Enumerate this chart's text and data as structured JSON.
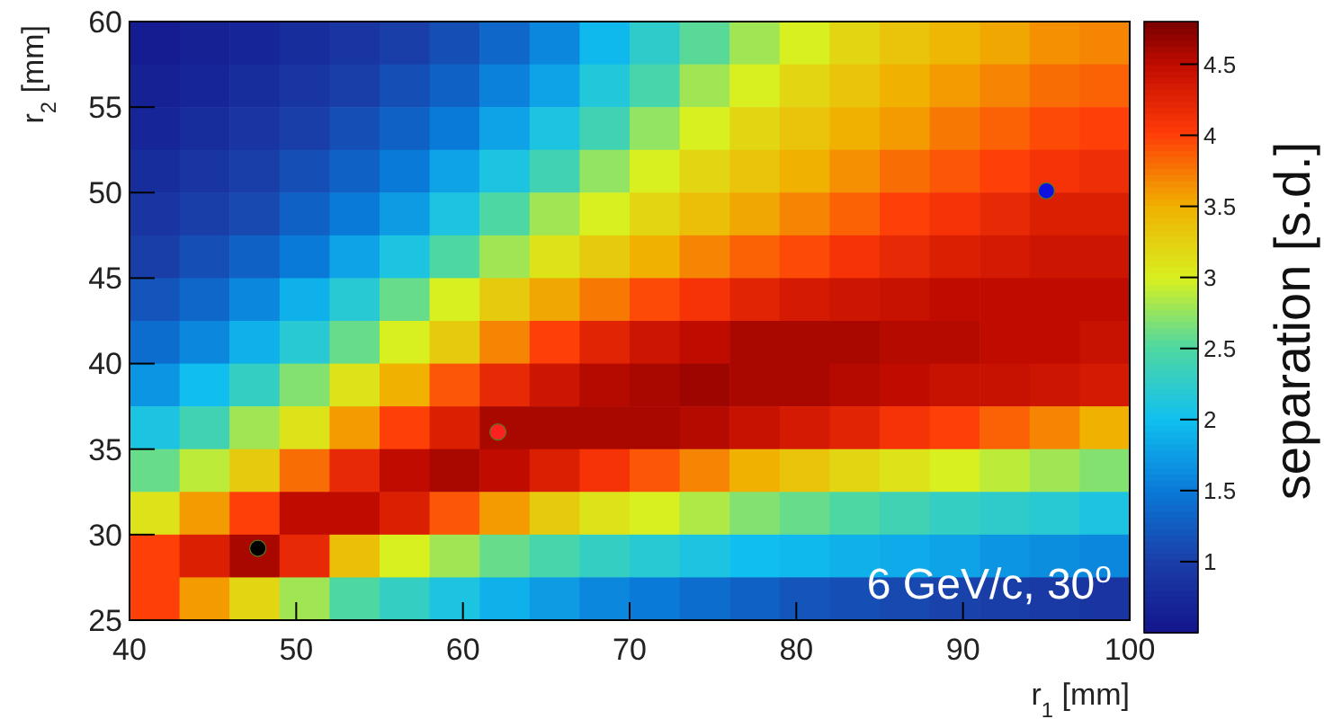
{
  "chart_data": {
    "type": "heatmap",
    "xlabel": "r$_{1}$ [mm]",
    "ylabel": "r$_{2}$ [mm]",
    "clabel": "separation [s.d.]",
    "annotations": [
      "6 GeV/c, 30$^{o}$"
    ],
    "x": [
      41.5,
      44.5,
      47.5,
      50.5,
      53.5,
      56.5,
      59.5,
      62.5,
      65.5,
      68.5,
      71.5,
      74.5,
      77.5,
      80.5,
      83.5,
      86.5,
      89.5,
      92.5,
      95.5,
      98.5
    ],
    "y": [
      58.75,
      56.25,
      53.75,
      51.25,
      48.75,
      46.25,
      43.75,
      41.25,
      38.75,
      36.25,
      33.75,
      31.25,
      28.75,
      26.25
    ],
    "cells": [
      [
        0.6,
        0.65,
        0.7,
        0.8,
        0.9,
        1.0,
        1.15,
        1.35,
        1.6,
        1.95,
        2.25,
        2.55,
        2.8,
        3.0,
        3.2,
        3.35,
        3.45,
        3.55,
        3.65,
        3.7
      ],
      [
        0.65,
        0.7,
        0.8,
        0.9,
        1.0,
        1.15,
        1.3,
        1.55,
        1.8,
        2.15,
        2.45,
        2.8,
        3.0,
        3.2,
        3.35,
        3.5,
        3.6,
        3.7,
        3.8,
        3.85
      ],
      [
        0.7,
        0.8,
        0.9,
        1.0,
        1.15,
        1.3,
        1.5,
        1.8,
        2.1,
        2.4,
        2.75,
        3.0,
        3.2,
        3.35,
        3.5,
        3.6,
        3.75,
        3.85,
        3.95,
        4.0
      ],
      [
        0.8,
        0.9,
        1.0,
        1.15,
        1.3,
        1.5,
        1.8,
        2.1,
        2.4,
        2.75,
        3.0,
        3.2,
        3.35,
        3.5,
        3.65,
        3.8,
        3.9,
        4.0,
        4.1,
        4.15
      ],
      [
        0.9,
        1.0,
        1.1,
        1.3,
        1.5,
        1.75,
        2.1,
        2.5,
        2.8,
        3.0,
        3.2,
        3.4,
        3.55,
        3.7,
        3.85,
        4.0,
        4.1,
        4.2,
        4.3,
        4.3
      ],
      [
        1.0,
        1.15,
        1.3,
        1.5,
        1.8,
        2.1,
        2.5,
        2.8,
        3.1,
        3.3,
        3.5,
        3.7,
        3.85,
        3.95,
        4.1,
        4.2,
        4.3,
        4.35,
        4.4,
        4.4
      ],
      [
        1.2,
        1.35,
        1.6,
        1.9,
        2.2,
        2.6,
        3.0,
        3.3,
        3.55,
        3.75,
        3.95,
        4.1,
        4.25,
        4.35,
        4.4,
        4.45,
        4.5,
        4.5,
        4.5,
        4.5
      ],
      [
        1.4,
        1.6,
        1.9,
        2.2,
        2.6,
        3.0,
        3.3,
        3.7,
        4.0,
        4.25,
        4.4,
        4.5,
        4.6,
        4.6,
        4.6,
        4.55,
        4.55,
        4.5,
        4.5,
        4.45
      ],
      [
        1.7,
        2.0,
        2.3,
        2.7,
        3.1,
        3.5,
        3.9,
        4.2,
        4.4,
        4.55,
        4.6,
        4.65,
        4.6,
        4.6,
        4.55,
        4.5,
        4.45,
        4.45,
        4.4,
        4.35
      ],
      [
        2.1,
        2.4,
        2.8,
        3.1,
        3.6,
        4.0,
        4.3,
        4.6,
        4.6,
        4.6,
        4.6,
        4.55,
        4.45,
        4.35,
        4.25,
        4.1,
        4.0,
        3.85,
        3.7,
        3.5
      ],
      [
        2.6,
        2.9,
        3.3,
        3.8,
        4.2,
        4.5,
        4.6,
        4.5,
        4.3,
        4.1,
        3.9,
        3.7,
        3.5,
        3.35,
        3.2,
        3.1,
        3.0,
        2.9,
        2.8,
        2.7
      ],
      [
        3.1,
        3.6,
        4.0,
        4.5,
        4.5,
        4.3,
        3.9,
        3.6,
        3.3,
        3.1,
        3.0,
        2.85,
        2.7,
        2.6,
        2.5,
        2.4,
        2.3,
        2.25,
        2.2,
        2.1
      ],
      [
        4.0,
        4.3,
        4.6,
        4.2,
        3.4,
        3.0,
        2.8,
        2.6,
        2.45,
        2.3,
        2.2,
        2.1,
        2.0,
        1.95,
        1.9,
        1.85,
        1.8,
        1.7,
        1.65,
        1.6
      ],
      [
        4.0,
        3.6,
        3.2,
        2.8,
        2.5,
        2.3,
        2.1,
        1.9,
        1.75,
        1.6,
        1.5,
        1.4,
        1.3,
        1.2,
        1.15,
        1.1,
        1.05,
        1.0,
        0.95,
        0.9
      ]
    ],
    "series": [
      {
        "type": "scatter",
        "color": "#000000",
        "x": [
          47.7
        ],
        "values": [
          29.2
        ]
      },
      {
        "type": "scatter",
        "color": "#ff2020",
        "x": [
          62.1
        ],
        "values": [
          36.0
        ]
      },
      {
        "type": "scatter",
        "color": "#1010e0",
        "x": [
          95.0
        ],
        "values": [
          50.1
        ]
      }
    ],
    "marker": "circle",
    "xlim": [
      40,
      100
    ],
    "xticks": [
      40,
      50,
      60,
      70,
      80,
      90,
      100
    ],
    "ylim": [
      25,
      60
    ],
    "yticks": [
      25,
      30,
      35,
      40,
      45,
      50,
      55,
      60
    ],
    "clim": [
      0.5,
      4.8
    ],
    "cticks": [
      1,
      1.5,
      2,
      2.5,
      3,
      3.5,
      4,
      4.5
    ]
  }
}
